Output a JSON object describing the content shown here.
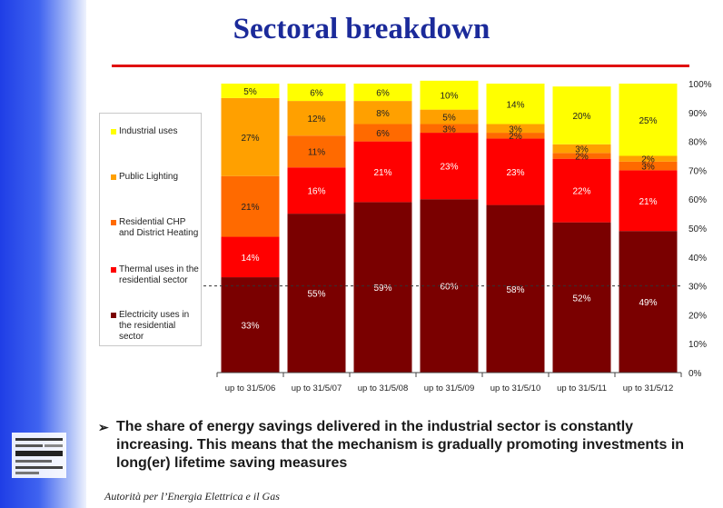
{
  "slide": {
    "title": "Sectoral breakdown",
    "bullet": "The share of energy savings delivered in the industrial sector is constantly increasing. This means that the mechanism is gradually promoting investments in long(er) lifetime saving measures",
    "footer": "Autorità per l’Energia Elettrica e il Gas",
    "colors": {
      "title": "#1b2a9a",
      "rule": "#e01010",
      "band": "#2b4de8"
    }
  },
  "chart_data": {
    "type": "bar",
    "stacked": true,
    "categories": [
      "up to 31/5/06",
      "up to 31/5/07",
      "up to 31/5/08",
      "up to 31/5/09",
      "up to 31/5/10",
      "up to 31/5/11",
      "up to 31/5/12"
    ],
    "series": [
      {
        "name": "Electricity uses in the residential sector",
        "color": "#7a0000",
        "values": [
          33,
          55,
          59,
          60,
          58,
          52,
          49
        ],
        "labels": [
          "33%",
          "55%",
          "59%",
          "60%",
          "58%",
          "52%",
          "49%"
        ]
      },
      {
        "name": "Thermal uses in the residential sector",
        "color": "#ff0000",
        "values": [
          14,
          16,
          21,
          23,
          23,
          22,
          21
        ],
        "labels": [
          "14%",
          "16%",
          "21%",
          "23%",
          "23%",
          "22%",
          "21%"
        ]
      },
      {
        "name": "Residential CHP and District Heating",
        "color": "#ff6a00",
        "values": [
          21,
          11,
          6,
          3,
          2,
          2,
          3
        ],
        "labels": [
          "21%",
          "11%",
          "6%",
          "3%",
          "2%",
          "2%",
          "3%"
        ]
      },
      {
        "name": "Public Lighting",
        "color": "#ffa000",
        "values": [
          27,
          12,
          8,
          5,
          3,
          3,
          2
        ],
        "labels": [
          "27%",
          "12%",
          "8%",
          "5%",
          "3%",
          "3%",
          "2%"
        ]
      },
      {
        "name": "Industrial uses",
        "color": "#ffff00",
        "values": [
          5,
          6,
          6,
          10,
          14,
          20,
          25
        ],
        "labels": [
          "5%",
          "6%",
          "6%",
          "10%",
          "14%",
          "20%",
          "25%"
        ]
      }
    ],
    "y_ticks": [
      "0%",
      "10%",
      "20%",
      "30%",
      "40%",
      "50%",
      "60%",
      "70%",
      "80%",
      "90%",
      "100%"
    ],
    "ylim": [
      0,
      100
    ],
    "reference_line": 30,
    "legend": [
      {
        "label": "Industrial uses",
        "color": "#ffff00"
      },
      {
        "label": "Public Lighting",
        "color": "#ffa000"
      },
      {
        "label": "Residential CHP and District Heating",
        "color": "#ff6a00"
      },
      {
        "label": "Thermal uses in the residential sector",
        "color": "#ff0000"
      },
      {
        "label": "Electricity uses in the residential sector",
        "color": "#7a0000"
      }
    ]
  }
}
